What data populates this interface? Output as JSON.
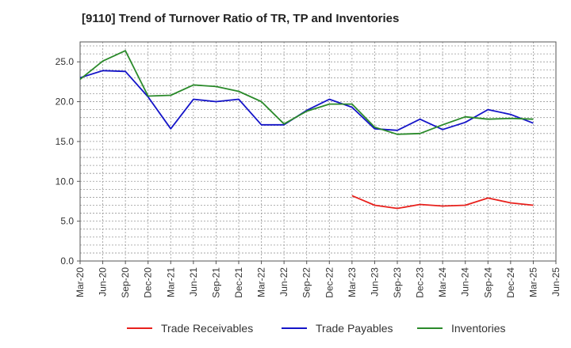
{
  "chart_data": {
    "type": "line",
    "title": "[9110]  Trend of Turnover Ratio of TR, TP and Inventories",
    "xlabel": "",
    "ylabel": "",
    "ylim": [
      0,
      27.5
    ],
    "yticks": [
      "0.0",
      "5.0",
      "10.0",
      "15.0",
      "20.0",
      "25.0"
    ],
    "grid": true,
    "legend_position": "bottom",
    "x": [
      "Mar-20",
      "Jun-20",
      "Sep-20",
      "Dec-20",
      "Mar-21",
      "Jun-21",
      "Sep-21",
      "Dec-21",
      "Mar-22",
      "Jun-22",
      "Sep-22",
      "Dec-22",
      "Mar-23",
      "Jun-23",
      "Sep-23",
      "Dec-23",
      "Mar-24",
      "Jun-24",
      "Sep-24",
      "Dec-24",
      "Mar-25",
      "Jun-25"
    ],
    "series": [
      {
        "name": "Trade Receivables",
        "color": "#e8201c",
        "values": [
          null,
          null,
          null,
          null,
          null,
          null,
          null,
          null,
          null,
          null,
          null,
          null,
          8.2,
          7.0,
          6.6,
          7.1,
          6.9,
          7.0,
          7.9,
          7.3,
          7.0,
          null
        ]
      },
      {
        "name": "Trade Payables",
        "color": "#1414c8",
        "values": [
          23.0,
          23.9,
          23.8,
          20.6,
          16.6,
          20.3,
          20.0,
          20.3,
          17.1,
          17.1,
          18.9,
          20.3,
          19.3,
          16.6,
          16.4,
          17.8,
          16.5,
          17.4,
          19.0,
          18.4,
          17.3,
          null
        ]
      },
      {
        "name": "Inventories",
        "color": "#2a8a2a",
        "values": [
          22.8,
          25.1,
          26.4,
          20.7,
          20.8,
          22.1,
          21.9,
          21.3,
          20.0,
          17.2,
          18.8,
          19.7,
          19.7,
          16.8,
          15.9,
          16.0,
          17.1,
          18.1,
          17.8,
          17.9,
          17.8,
          null
        ]
      }
    ]
  }
}
